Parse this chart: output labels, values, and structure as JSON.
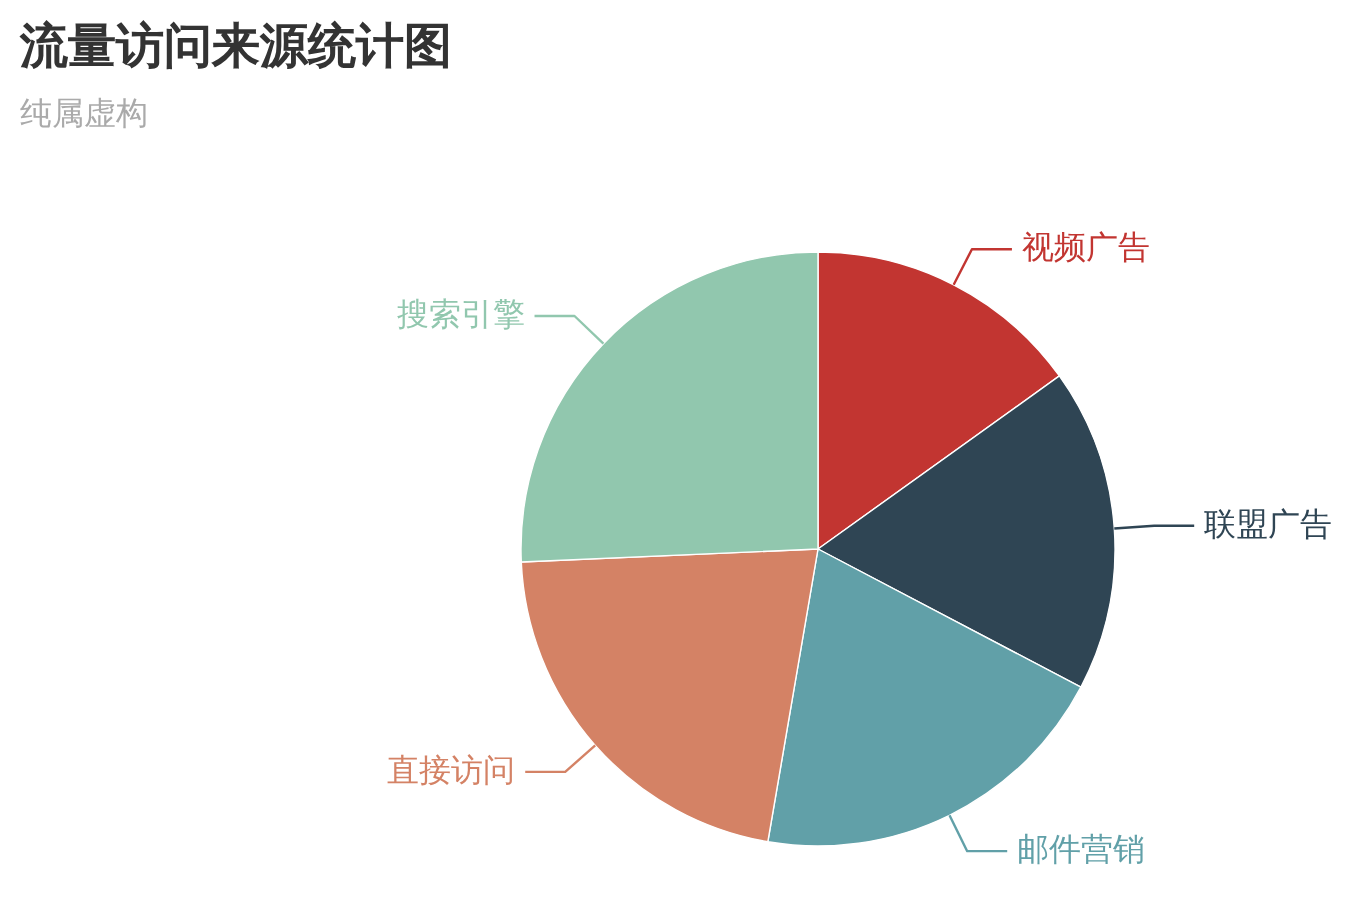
{
  "chart_data": {
    "type": "pie",
    "title": "流量访问来源统计图",
    "subtitle": "纯属虚构",
    "categories": [
      "视频广告",
      "联盟广告",
      "邮件营销",
      "直接访问",
      "搜索引擎"
    ],
    "values": [
      15.1,
      17.6,
      20.0,
      21.6,
      25.7
    ],
    "colors": [
      "#c23531",
      "#2f4554",
      "#61a0a8",
      "#d48265",
      "#91c7ae"
    ]
  }
}
